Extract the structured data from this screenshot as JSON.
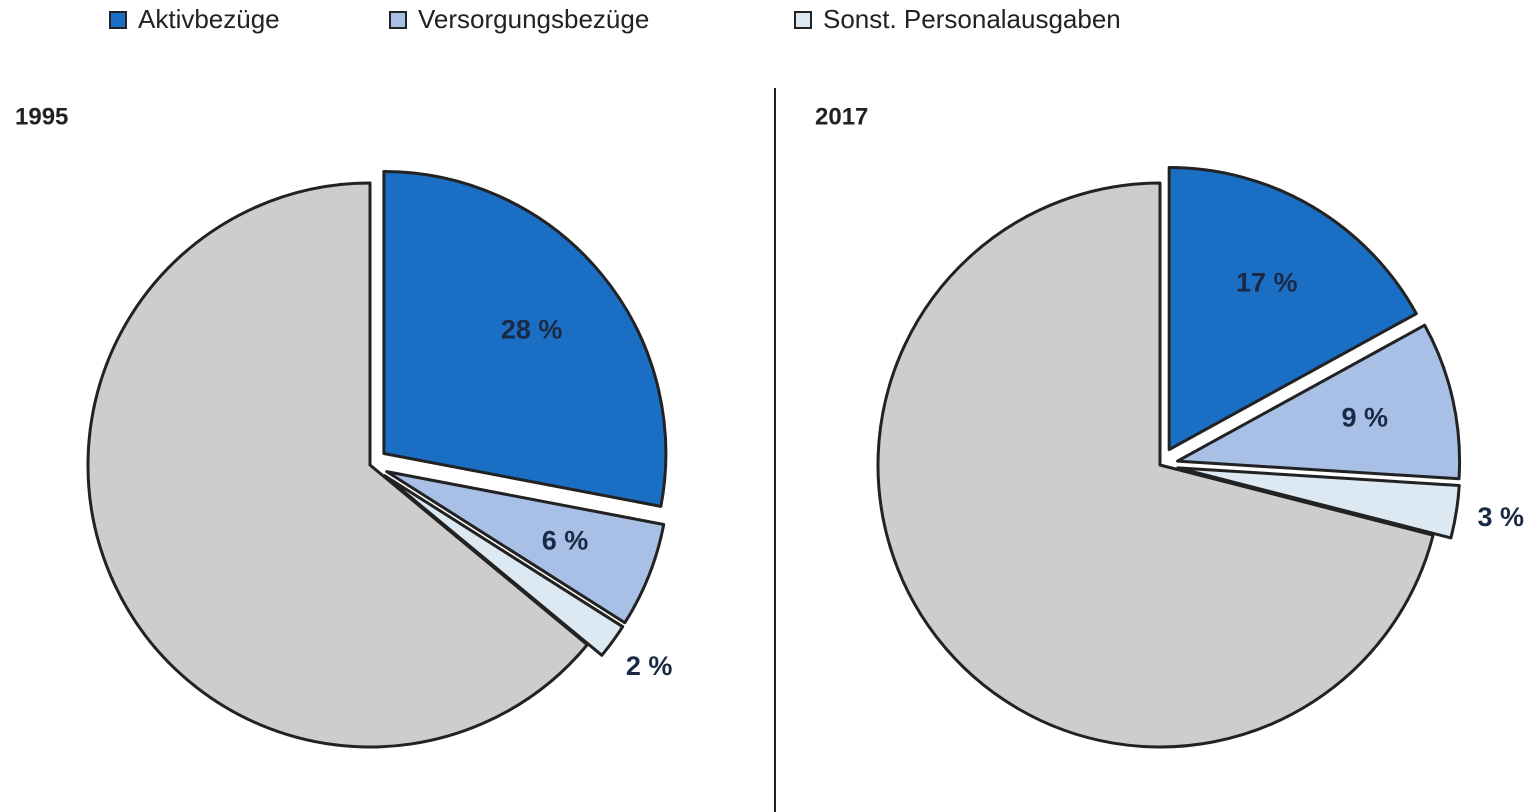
{
  "chart_data": [
    {
      "type": "pie",
      "title": "1995",
      "categories": [
        "Aktivbezüge",
        "Versorgungsbezüge",
        "Sonst. Personalausgaben",
        null
      ],
      "values": [
        28,
        6,
        2,
        64
      ],
      "value_labels": [
        "28 %",
        "6 %",
        "2 %",
        null
      ],
      "colors": [
        "#1a6fc4",
        "#a9c0e6",
        "#dce9f2",
        "#cdcdcd"
      ]
    },
    {
      "type": "pie",
      "title": "2017",
      "categories": [
        "Aktivbezüge",
        "Versorgungsbezüge",
        "Sonst. Personalausgaben",
        null
      ],
      "values": [
        17,
        9,
        3,
        71
      ],
      "value_labels": [
        "17 %",
        "9 %",
        "3 %",
        null
      ],
      "colors": [
        "#1a6fc4",
        "#a9c0e6",
        "#dce9f2",
        "#cdcdcd"
      ]
    }
  ]
}
